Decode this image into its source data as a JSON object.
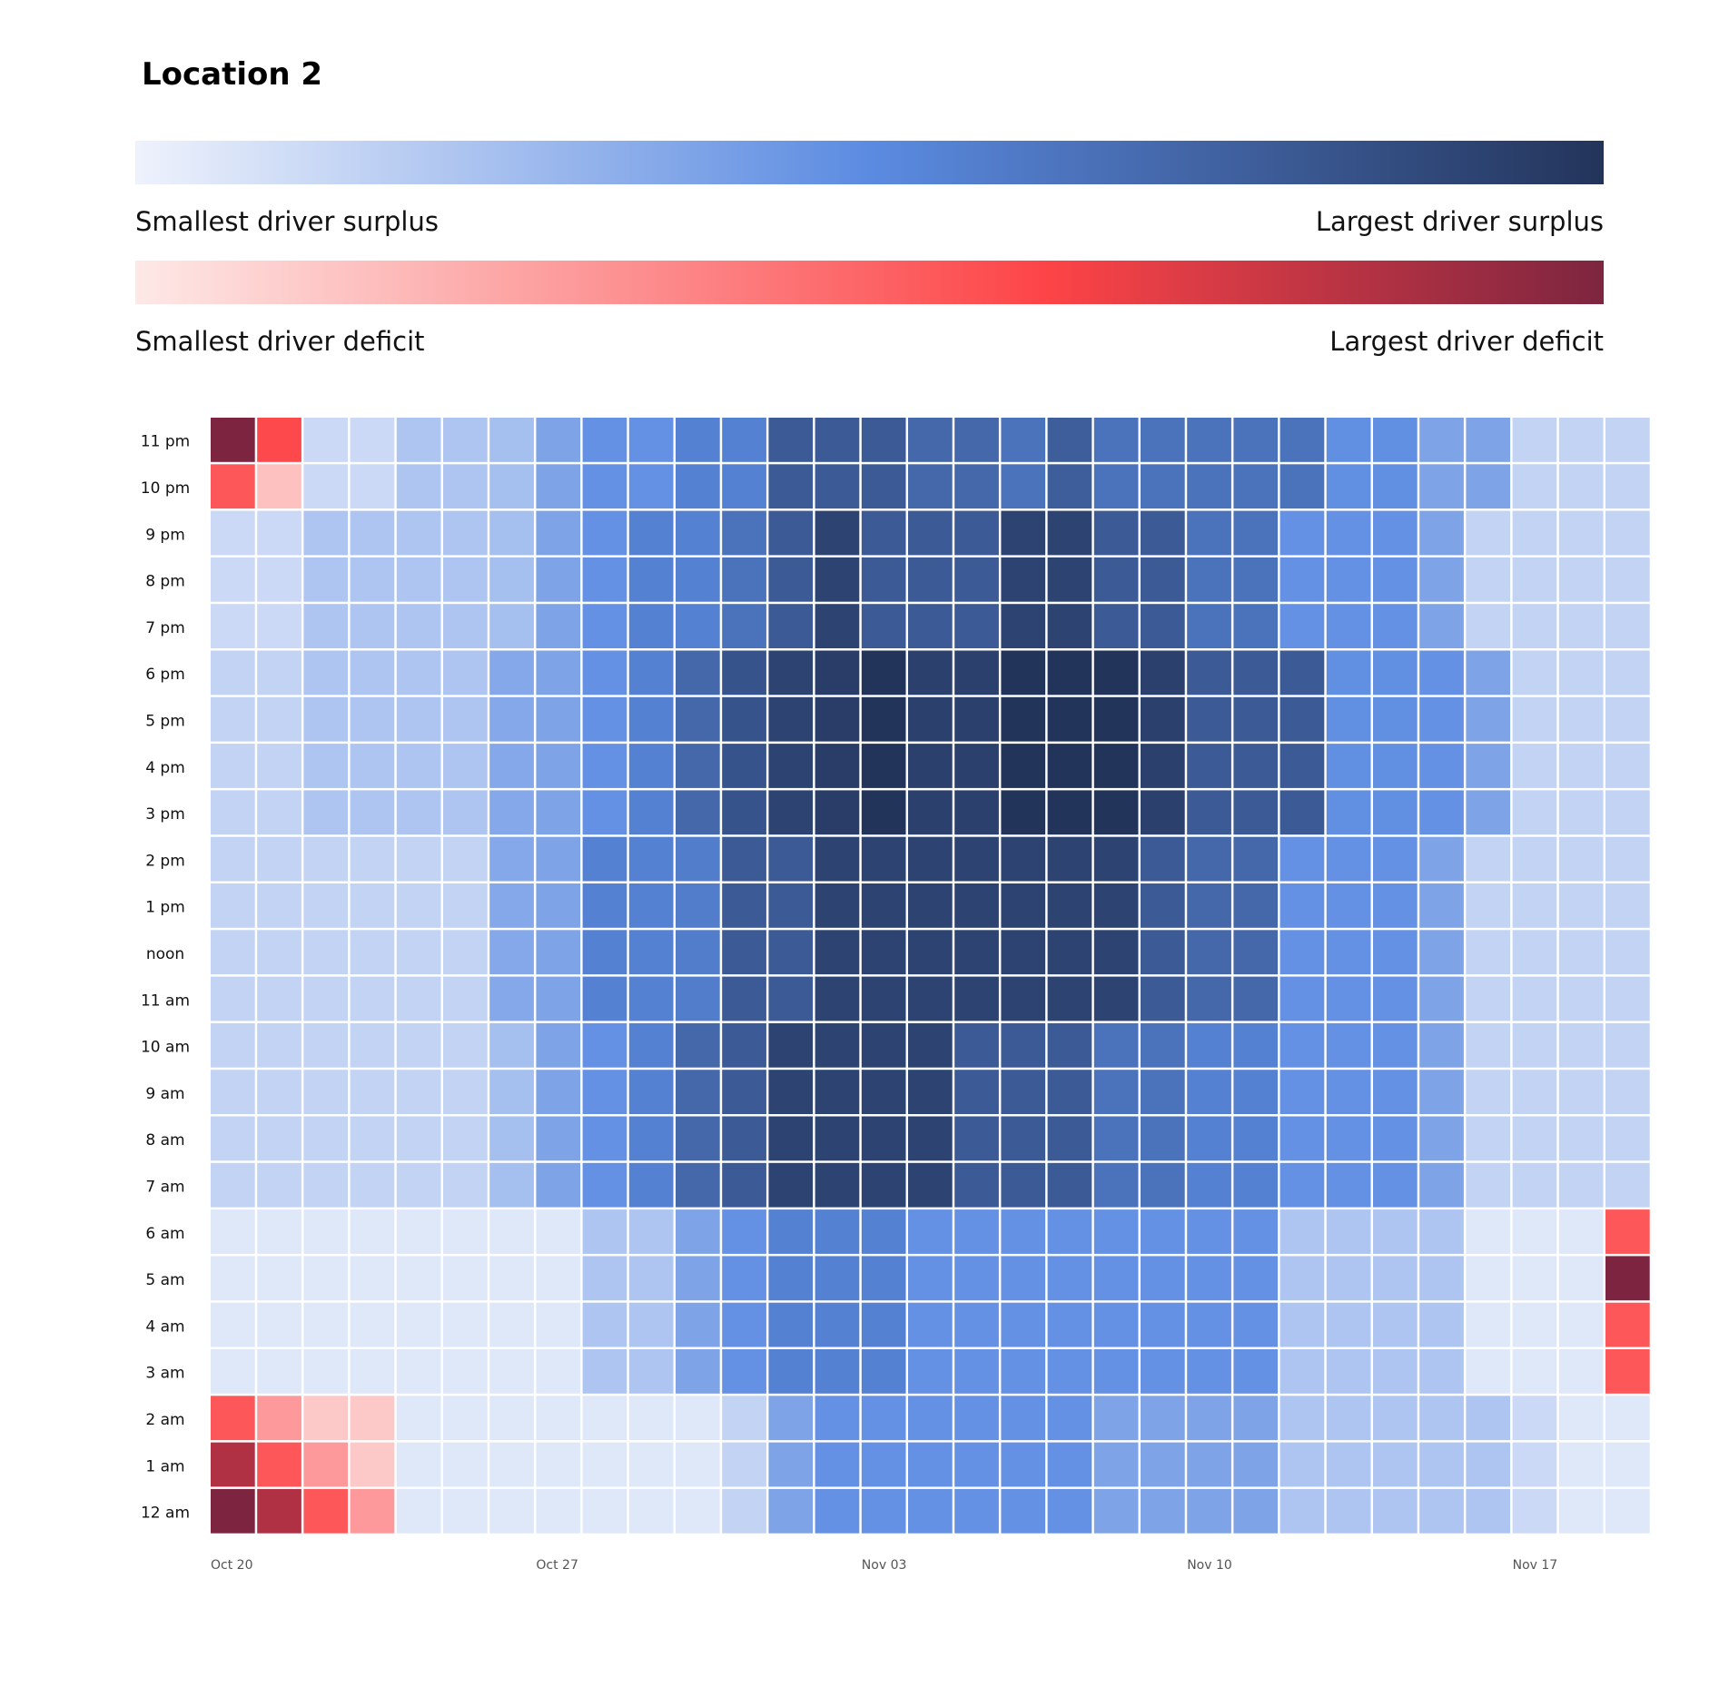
{
  "title": "Location 2",
  "legend": {
    "surplus": {
      "low_label": "Smallest driver surplus",
      "high_label": "Largest driver surplus",
      "colors": [
        "#eef2fc",
        "#5b8be1",
        "#23345a"
      ]
    },
    "deficit": {
      "low_label": "Smallest driver deficit",
      "high_label": "Largest driver deficit",
      "colors": [
        "#fde9e7",
        "#fd4447",
        "#7d2540"
      ]
    }
  },
  "chart_data": {
    "type": "heatmap",
    "title": "Location 2",
    "x_start_date": "Oct 20",
    "x_ticks": [
      "Oct 20",
      "Oct 27",
      "Nov 03",
      "Nov 10",
      "Nov 17"
    ],
    "x_tick_indices": [
      0,
      7,
      14,
      21,
      28
    ],
    "num_days": 31,
    "y_labels": [
      "11 pm",
      "10 pm",
      "9 pm",
      "8 pm",
      "7 pm",
      "6 pm",
      "5 pm",
      "4 pm",
      "3 pm",
      "2 pm",
      "1 pm",
      "noon",
      "11 am",
      "10 am",
      "9 am",
      "8 am",
      "7 am",
      "6 am",
      "5 am",
      "4 am",
      "3 am",
      "2 am",
      "1 am",
      "12 am"
    ],
    "value_note": "positive = driver surplus (blue scale), negative = driver deficit (red scale), normalized -1..1",
    "values": [
      [
        -1.0,
        -0.6,
        0.12,
        0.12,
        0.22,
        0.22,
        0.25,
        0.38,
        0.47,
        0.47,
        0.56,
        0.56,
        0.78,
        0.78,
        0.78,
        0.7,
        0.7,
        0.64,
        0.76,
        0.64,
        0.64,
        0.64,
        0.64,
        0.64,
        0.48,
        0.48,
        0.38,
        0.38,
        0.15,
        0.15,
        0.15
      ],
      [
        -0.55,
        -0.15,
        0.12,
        0.12,
        0.22,
        0.22,
        0.25,
        0.38,
        0.47,
        0.47,
        0.56,
        0.56,
        0.78,
        0.78,
        0.78,
        0.7,
        0.7,
        0.64,
        0.76,
        0.64,
        0.64,
        0.64,
        0.64,
        0.64,
        0.48,
        0.48,
        0.38,
        0.38,
        0.15,
        0.15,
        0.15
      ],
      [
        0.12,
        0.12,
        0.22,
        0.22,
        0.22,
        0.22,
        0.25,
        0.38,
        0.47,
        0.56,
        0.56,
        0.64,
        0.78,
        0.91,
        0.78,
        0.78,
        0.78,
        0.91,
        0.91,
        0.78,
        0.78,
        0.64,
        0.64,
        0.47,
        0.47,
        0.47,
        0.38,
        0.15,
        0.15,
        0.15,
        0.15
      ],
      [
        0.12,
        0.12,
        0.22,
        0.22,
        0.22,
        0.22,
        0.25,
        0.38,
        0.47,
        0.56,
        0.56,
        0.64,
        0.78,
        0.91,
        0.78,
        0.78,
        0.78,
        0.91,
        0.91,
        0.78,
        0.78,
        0.64,
        0.64,
        0.47,
        0.47,
        0.47,
        0.38,
        0.15,
        0.15,
        0.15,
        0.15
      ],
      [
        0.12,
        0.12,
        0.22,
        0.22,
        0.22,
        0.22,
        0.25,
        0.38,
        0.47,
        0.56,
        0.56,
        0.64,
        0.78,
        0.91,
        0.78,
        0.78,
        0.78,
        0.91,
        0.91,
        0.78,
        0.78,
        0.64,
        0.64,
        0.47,
        0.47,
        0.47,
        0.38,
        0.15,
        0.15,
        0.15,
        0.15
      ],
      [
        0.15,
        0.15,
        0.22,
        0.22,
        0.22,
        0.22,
        0.36,
        0.38,
        0.47,
        0.56,
        0.7,
        0.82,
        0.91,
        0.95,
        1.0,
        0.93,
        0.93,
        1.0,
        1.0,
        1.0,
        0.93,
        0.78,
        0.78,
        0.78,
        0.48,
        0.48,
        0.47,
        0.38,
        0.15,
        0.15,
        0.15
      ],
      [
        0.15,
        0.15,
        0.22,
        0.22,
        0.22,
        0.22,
        0.36,
        0.38,
        0.47,
        0.56,
        0.7,
        0.82,
        0.91,
        0.95,
        1.0,
        0.93,
        0.93,
        1.0,
        1.0,
        1.0,
        0.93,
        0.78,
        0.78,
        0.78,
        0.48,
        0.48,
        0.47,
        0.38,
        0.15,
        0.15,
        0.15
      ],
      [
        0.15,
        0.15,
        0.22,
        0.22,
        0.22,
        0.22,
        0.36,
        0.38,
        0.47,
        0.56,
        0.7,
        0.82,
        0.91,
        0.95,
        1.0,
        0.93,
        0.93,
        1.0,
        1.0,
        1.0,
        0.93,
        0.78,
        0.78,
        0.78,
        0.48,
        0.48,
        0.47,
        0.38,
        0.15,
        0.15,
        0.15
      ],
      [
        0.15,
        0.15,
        0.22,
        0.22,
        0.22,
        0.22,
        0.36,
        0.38,
        0.47,
        0.56,
        0.7,
        0.82,
        0.91,
        0.95,
        1.0,
        0.93,
        0.93,
        1.0,
        1.0,
        1.0,
        0.93,
        0.78,
        0.78,
        0.78,
        0.48,
        0.48,
        0.47,
        0.38,
        0.15,
        0.15,
        0.15
      ],
      [
        0.15,
        0.15,
        0.15,
        0.15,
        0.15,
        0.15,
        0.36,
        0.38,
        0.56,
        0.56,
        0.58,
        0.78,
        0.78,
        0.91,
        0.91,
        0.91,
        0.91,
        0.91,
        0.91,
        0.91,
        0.78,
        0.7,
        0.7,
        0.47,
        0.47,
        0.47,
        0.38,
        0.15,
        0.15,
        0.15,
        0.15
      ],
      [
        0.15,
        0.15,
        0.15,
        0.15,
        0.15,
        0.15,
        0.36,
        0.38,
        0.56,
        0.56,
        0.58,
        0.78,
        0.78,
        0.91,
        0.91,
        0.91,
        0.91,
        0.91,
        0.91,
        0.91,
        0.78,
        0.7,
        0.7,
        0.47,
        0.47,
        0.47,
        0.38,
        0.15,
        0.15,
        0.15,
        0.15
      ],
      [
        0.15,
        0.15,
        0.15,
        0.15,
        0.15,
        0.15,
        0.36,
        0.38,
        0.56,
        0.56,
        0.58,
        0.78,
        0.78,
        0.91,
        0.91,
        0.91,
        0.91,
        0.91,
        0.91,
        0.91,
        0.78,
        0.7,
        0.7,
        0.47,
        0.47,
        0.47,
        0.38,
        0.15,
        0.15,
        0.15,
        0.15
      ],
      [
        0.15,
        0.15,
        0.15,
        0.15,
        0.15,
        0.15,
        0.36,
        0.38,
        0.56,
        0.56,
        0.58,
        0.78,
        0.78,
        0.91,
        0.91,
        0.91,
        0.91,
        0.91,
        0.91,
        0.91,
        0.78,
        0.7,
        0.7,
        0.47,
        0.47,
        0.47,
        0.38,
        0.15,
        0.15,
        0.15,
        0.15
      ],
      [
        0.15,
        0.15,
        0.15,
        0.15,
        0.15,
        0.15,
        0.25,
        0.38,
        0.47,
        0.56,
        0.7,
        0.78,
        0.91,
        0.91,
        0.91,
        0.91,
        0.78,
        0.78,
        0.78,
        0.64,
        0.64,
        0.56,
        0.56,
        0.47,
        0.47,
        0.47,
        0.38,
        0.15,
        0.15,
        0.15,
        0.15
      ],
      [
        0.15,
        0.15,
        0.15,
        0.15,
        0.15,
        0.15,
        0.25,
        0.38,
        0.47,
        0.56,
        0.7,
        0.78,
        0.91,
        0.91,
        0.91,
        0.91,
        0.78,
        0.78,
        0.78,
        0.64,
        0.64,
        0.56,
        0.56,
        0.47,
        0.47,
        0.47,
        0.38,
        0.15,
        0.15,
        0.15,
        0.15
      ],
      [
        0.15,
        0.15,
        0.15,
        0.15,
        0.15,
        0.15,
        0.25,
        0.38,
        0.47,
        0.56,
        0.7,
        0.78,
        0.91,
        0.91,
        0.91,
        0.91,
        0.78,
        0.78,
        0.78,
        0.64,
        0.64,
        0.56,
        0.56,
        0.47,
        0.47,
        0.47,
        0.38,
        0.15,
        0.15,
        0.15,
        0.15
      ],
      [
        0.15,
        0.15,
        0.15,
        0.15,
        0.15,
        0.15,
        0.25,
        0.38,
        0.47,
        0.56,
        0.7,
        0.78,
        0.91,
        0.91,
        0.91,
        0.91,
        0.78,
        0.78,
        0.78,
        0.64,
        0.64,
        0.56,
        0.56,
        0.47,
        0.47,
        0.47,
        0.38,
        0.15,
        0.15,
        0.15,
        0.15
      ],
      [
        0.05,
        0.05,
        0.05,
        0.05,
        0.05,
        0.05,
        0.05,
        0.05,
        0.22,
        0.22,
        0.38,
        0.47,
        0.56,
        0.56,
        0.56,
        0.47,
        0.47,
        0.47,
        0.47,
        0.47,
        0.47,
        0.47,
        0.47,
        0.22,
        0.22,
        0.22,
        0.22,
        0.05,
        0.05,
        0.05,
        -0.55
      ],
      [
        0.05,
        0.05,
        0.05,
        0.05,
        0.05,
        0.05,
        0.05,
        0.05,
        0.22,
        0.22,
        0.38,
        0.47,
        0.56,
        0.56,
        0.56,
        0.47,
        0.47,
        0.47,
        0.47,
        0.47,
        0.47,
        0.47,
        0.47,
        0.22,
        0.22,
        0.22,
        0.22,
        0.05,
        0.05,
        0.05,
        -1.0
      ],
      [
        0.05,
        0.05,
        0.05,
        0.05,
        0.05,
        0.05,
        0.05,
        0.05,
        0.22,
        0.22,
        0.38,
        0.47,
        0.56,
        0.56,
        0.56,
        0.47,
        0.47,
        0.47,
        0.47,
        0.47,
        0.47,
        0.47,
        0.47,
        0.22,
        0.22,
        0.22,
        0.22,
        0.05,
        0.05,
        0.05,
        -0.55
      ],
      [
        0.05,
        0.05,
        0.05,
        0.05,
        0.05,
        0.05,
        0.05,
        0.05,
        0.22,
        0.22,
        0.38,
        0.47,
        0.56,
        0.56,
        0.56,
        0.47,
        0.47,
        0.47,
        0.47,
        0.47,
        0.47,
        0.47,
        0.47,
        0.22,
        0.22,
        0.22,
        0.22,
        0.05,
        0.05,
        0.05,
        -0.55
      ],
      [
        -0.55,
        -0.3,
        -0.12,
        -0.12,
        0.05,
        0.05,
        0.05,
        0.05,
        0.05,
        0.05,
        0.05,
        0.15,
        0.38,
        0.47,
        0.47,
        0.47,
        0.47,
        0.47,
        0.47,
        0.38,
        0.38,
        0.38,
        0.38,
        0.22,
        0.22,
        0.22,
        0.22,
        0.22,
        0.12,
        0.05,
        0.05
      ],
      [
        -0.85,
        -0.55,
        -0.3,
        -0.12,
        0.05,
        0.05,
        0.05,
        0.05,
        0.05,
        0.05,
        0.05,
        0.15,
        0.38,
        0.47,
        0.47,
        0.47,
        0.47,
        0.47,
        0.47,
        0.38,
        0.38,
        0.38,
        0.38,
        0.22,
        0.22,
        0.22,
        0.22,
        0.22,
        0.12,
        0.05,
        0.05
      ],
      [
        -1.0,
        -0.85,
        -0.55,
        -0.3,
        0.05,
        0.05,
        0.05,
        0.05,
        0.05,
        0.05,
        0.05,
        0.15,
        0.38,
        0.47,
        0.47,
        0.47,
        0.47,
        0.47,
        0.47,
        0.38,
        0.38,
        0.38,
        0.38,
        0.22,
        0.22,
        0.22,
        0.22,
        0.22,
        0.12,
        0.05,
        0.05
      ]
    ]
  }
}
